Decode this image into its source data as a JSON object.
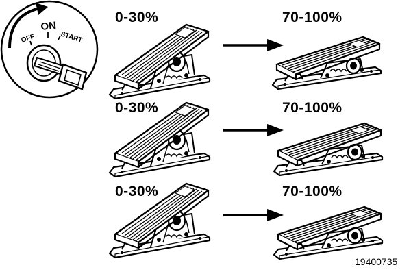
{
  "key_switch": {
    "off_label": "OFF",
    "on_label": "ON",
    "start_label": "START"
  },
  "rows": [
    {
      "start_label": "0-30%",
      "end_label": "70-100%"
    },
    {
      "start_label": "0-30%",
      "end_label": "70-100%"
    },
    {
      "start_label": "0-30%",
      "end_label": "70-100%"
    }
  ],
  "figure_number": "19400735",
  "colors": {
    "ink": "#000000",
    "paper": "#ffffff",
    "shade": "#d0d0d0"
  }
}
